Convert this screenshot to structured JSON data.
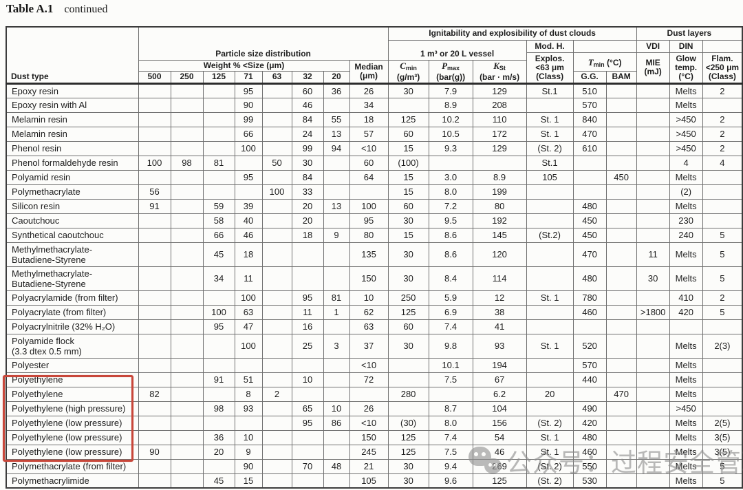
{
  "page": {
    "title_bold": "Table A.1",
    "title_rest": "continued"
  },
  "table": {
    "header": {
      "dust_type": "Dust type",
      "particle": "Particle size distribution",
      "weight": "Weight % <Size (μm)",
      "sizes": [
        "500",
        "250",
        "125",
        "71",
        "63",
        "32",
        "20"
      ],
      "median": [
        "Median",
        "(μm)"
      ],
      "ignitability": "Ignitability and explosibility of dust clouds",
      "dust_layers": "Dust layers",
      "vessel": "1 m³ or 20 L vessel",
      "cmin": {
        "sym": "C",
        "sub": "min",
        "unit": "(g/m³)"
      },
      "pmax": {
        "sym": "P",
        "sub": "max",
        "unit": "(bar(g))"
      },
      "kst": {
        "sym": "K",
        "sub": "St",
        "unit": "(bar · m/s)"
      },
      "mod_h": "Mod. H.",
      "explos": [
        "Explos.",
        "<63 μm",
        "(Class)"
      ],
      "tmin": {
        "sym": "T",
        "sub": "min",
        "unit": "(°C)"
      },
      "gg": "G.G.",
      "bam": "BAM",
      "vdi": "VDI",
      "din": "DIN",
      "mie": [
        "MIE",
        "(mJ)"
      ],
      "glow": [
        "Glow",
        "temp.",
        "(°C)"
      ],
      "flam": [
        "Flam.",
        "<250 μm",
        "(Class)"
      ]
    },
    "rows": [
      [
        "Epoxy resin",
        "",
        "",
        "",
        "95",
        "",
        "60",
        "36",
        "26",
        "30",
        "7.9",
        "129",
        "St.1",
        "510",
        "",
        "",
        "Melts",
        "2"
      ],
      [
        "Epoxy resin with Al",
        "",
        "",
        "",
        "90",
        "",
        "46",
        "",
        "34",
        "",
        "8.9",
        "208",
        "",
        "570",
        "",
        "",
        "Melts",
        ""
      ],
      [
        "Melamin resin",
        "",
        "",
        "",
        "99",
        "",
        "84",
        "55",
        "18",
        "125",
        "10.2",
        "110",
        "St. 1",
        "840",
        "",
        "",
        ">450",
        "2"
      ],
      [
        "Melamin resin",
        "",
        "",
        "",
        "66",
        "",
        "24",
        "13",
        "57",
        "60",
        "10.5",
        "172",
        "St. 1",
        "470",
        "",
        "",
        ">450",
        "2"
      ],
      [
        "Phenol resin",
        "",
        "",
        "",
        "100",
        "",
        "99",
        "94",
        "<10",
        "15",
        "9.3",
        "129",
        "(St. 2)",
        "610",
        "",
        "",
        ">450",
        "2"
      ],
      [
        "Phenol formaldehyde resin",
        "100",
        "98",
        "81",
        "",
        "50",
        "30",
        "",
        "60",
        "(100)",
        "",
        "",
        "St.1",
        "",
        "",
        "",
        "4",
        "4"
      ],
      [
        "Polyamid resin",
        "",
        "",
        "",
        "95",
        "",
        "84",
        "",
        "64",
        "15",
        "3.0",
        "8.9",
        "105",
        "",
        "450",
        "",
        "Melts",
        ""
      ],
      [
        "Polymethacrylate",
        "56",
        "",
        "",
        "",
        "100",
        "33",
        "",
        "",
        "15",
        "8.0",
        "199",
        "",
        "",
        "",
        "",
        "(2)",
        ""
      ],
      [
        "Silicon resin",
        "91",
        "",
        "59",
        "39",
        "",
        "20",
        "13",
        "100",
        "60",
        "7.2",
        "80",
        "",
        "480",
        "",
        "",
        "Melts",
        ""
      ],
      [
        "Caoutchouc",
        "",
        "",
        "58",
        "40",
        "",
        "20",
        "",
        "95",
        "30",
        "9.5",
        "192",
        "",
        "450",
        "",
        "",
        "230",
        ""
      ],
      [
        "Synthetical caoutchouc",
        "",
        "",
        "66",
        "46",
        "",
        "18",
        "9",
        "80",
        "15",
        "8.6",
        "145",
        "(St.2)",
        "450",
        "",
        "",
        "240",
        "5"
      ],
      [
        "Methylmethacrylate-\nButadiene-Styrene",
        "",
        "",
        "45",
        "18",
        "",
        "",
        "",
        "135",
        "30",
        "8.6",
        "120",
        "",
        "470",
        "",
        "11",
        "Melts",
        "5"
      ],
      [
        "Methylmethacrylate-\nButadiene-Styrene",
        "",
        "",
        "34",
        "11",
        "",
        "",
        "",
        "150",
        "30",
        "8.4",
        "114",
        "",
        "480",
        "",
        "30",
        "Melts",
        "5"
      ],
      [
        "Polyacrylamide (from filter)",
        "",
        "",
        "",
        "100",
        "",
        "95",
        "81",
        "10",
        "250",
        "5.9",
        "12",
        "St. 1",
        "780",
        "",
        "",
        "410",
        "2"
      ],
      [
        "Polyacrylate (from filter)",
        "",
        "",
        "100",
        "63",
        "",
        "11",
        "1",
        "62",
        "125",
        "6.9",
        "38",
        "",
        "460",
        "",
        ">1800",
        "420",
        "5"
      ],
      [
        "Polyacrylnitrile (32% H₂O)",
        "",
        "",
        "95",
        "47",
        "",
        "16",
        "",
        "63",
        "60",
        "7.4",
        "41",
        "",
        "",
        "",
        "",
        "",
        ""
      ],
      [
        "Polyamide flock\n(3.3 dtex 0.5 mm)",
        "",
        "",
        "",
        "100",
        "",
        "25",
        "3",
        "37",
        "30",
        "9.8",
        "93",
        "St. 1",
        "520",
        "",
        "",
        "Melts",
        "2(3)"
      ],
      [
        "Polyester",
        "",
        "",
        "",
        "",
        "",
        "",
        "",
        "<10",
        "",
        "10.1",
        "194",
        "",
        "570",
        "",
        "",
        "Melts",
        ""
      ],
      [
        "Polyethylene",
        "",
        "",
        "91",
        "51",
        "",
        "10",
        "",
        "72",
        "",
        "7.5",
        "67",
        "",
        "440",
        "",
        "",
        "Melts",
        ""
      ],
      [
        "Polyethylene",
        "82",
        "",
        "",
        "8",
        "2",
        "",
        "",
        "",
        "280",
        "",
        "6.2",
        "20",
        "",
        "470",
        "",
        "Melts",
        ""
      ],
      [
        "Polyethylene (high pressure)",
        "",
        "",
        "98",
        "93",
        "",
        "65",
        "10",
        "26",
        "",
        "8.7",
        "104",
        "",
        "490",
        "",
        "",
        ">450",
        ""
      ],
      [
        "Polyethylene (low pressure)",
        "",
        "",
        "",
        "",
        "",
        "95",
        "86",
        "<10",
        "(30)",
        "8.0",
        "156",
        "(St. 2)",
        "420",
        "",
        "",
        "Melts",
        "2(5)"
      ],
      [
        "Polyethylene (low pressure)",
        "",
        "",
        "36",
        "10",
        "",
        "",
        "",
        "150",
        "125",
        "7.4",
        "54",
        "St. 1",
        "480",
        "",
        "",
        "Melts",
        "3(5)"
      ],
      [
        "Polyethylene (low pressure)",
        "90",
        "",
        "20",
        "9",
        "",
        "",
        "",
        "245",
        "125",
        "7.5",
        "46",
        "St. 1",
        "460",
        "",
        "",
        "Melts",
        "3(5)"
      ],
      [
        "Polymethacrylate (from filter)",
        "",
        "",
        "",
        "90",
        "",
        "70",
        "48",
        "21",
        "30",
        "9.4",
        "269",
        "(St. 2)",
        "550",
        "",
        "",
        "Melts",
        "5"
      ],
      [
        "Polymethacrylimide",
        "",
        "",
        "45",
        "15",
        "",
        "",
        "",
        "105",
        "30",
        "9.6",
        "125",
        "(St. 2)",
        "530",
        "",
        "",
        "Melts",
        "5"
      ]
    ]
  },
  "annotations": {
    "highlight_color": "#c8473a",
    "watermark": {
      "text": "公众号：过程安全管理",
      "logo": "wechat-icon"
    }
  }
}
